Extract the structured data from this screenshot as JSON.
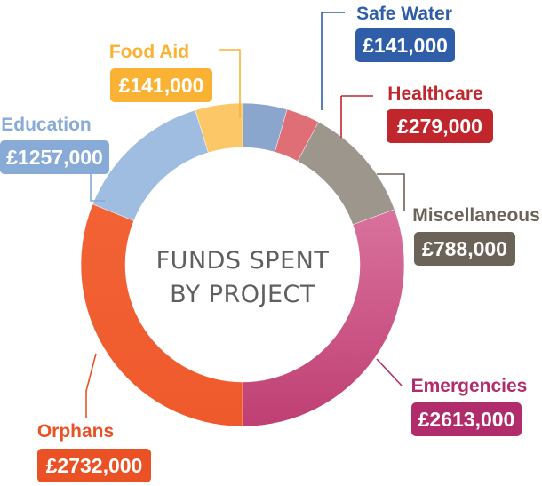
{
  "chart_data": {
    "type": "pie",
    "title": "FUNDS SPENT BY PROJECT",
    "title_lines": [
      "FUNDS SPENT",
      "BY PROJECT"
    ],
    "slices": [
      {
        "label": "Safe Water",
        "value_label": "£141,000",
        "value": 141000,
        "color": "#8ba6cc",
        "label_color": "#2f5da8"
      },
      {
        "label": "Healthcare",
        "value_label": "£279,000",
        "value": 279000,
        "color": "#e06e76",
        "label_color": "#c0262c"
      },
      {
        "label": "Miscellaneous",
        "value_label": "£788,000",
        "value": 788000,
        "color": "#9c968d",
        "label_color": "#6b6358"
      },
      {
        "label": "Emergencies",
        "value_label": "£2613,000",
        "value": 2613000,
        "color": "#cb4f86",
        "label_color": "#b02c6b"
      },
      {
        "label": "Orphans",
        "value_label": "£2732,000",
        "value": 2732000,
        "color": "#ef5a30",
        "label_color": "#ea5225"
      },
      {
        "label": "Education",
        "value_label": "£1257,000",
        "value": 1257000,
        "color": "#9fbde0",
        "label_color": "#88aad6"
      },
      {
        "label": "Food Aid",
        "value_label": "£141,000",
        "value": 141000,
        "color": "#fcc867",
        "label_color": "#f9b233"
      }
    ]
  }
}
